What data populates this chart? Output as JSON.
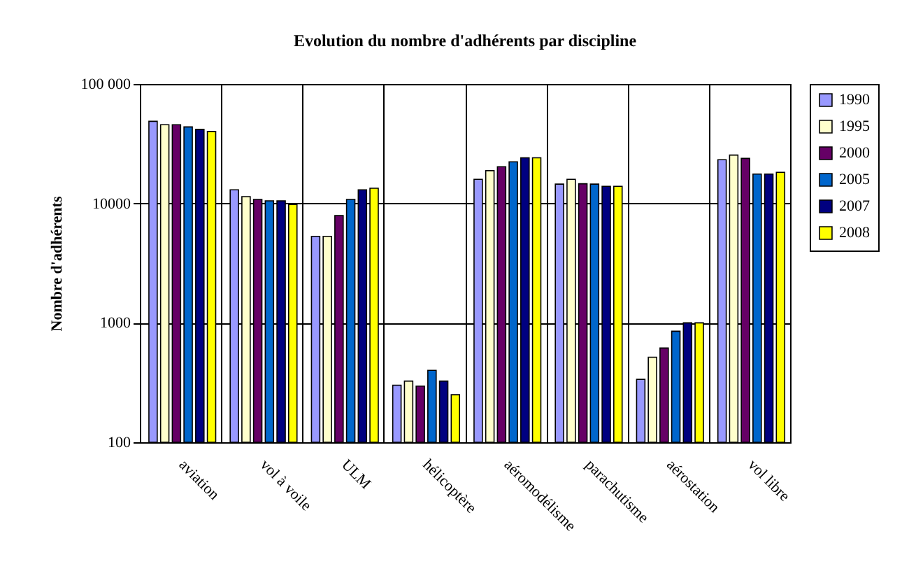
{
  "chart_data": {
    "type": "bar",
    "title": "Evolution du nombre d'adhérents par discipline",
    "ylabel": "Nombre d'adhérents",
    "categories": [
      "aviation",
      "vol à voile",
      "ULM",
      "hélicoptère",
      "aéromodélisme",
      "parachutisme",
      "aérostation",
      "vol libre"
    ],
    "series": [
      {
        "name": "1990",
        "color": "#9999ff",
        "values": [
          48700,
          13000,
          5300,
          300,
          15900,
          14500,
          336,
          23200
        ]
      },
      {
        "name": "1995",
        "color": "#ffffcc",
        "values": [
          45600,
          11400,
          5300,
          325,
          18800,
          15900,
          515,
          25400
        ]
      },
      {
        "name": "2000",
        "color": "#660066",
        "values": [
          45600,
          10800,
          7900,
          295,
          20300,
          14600,
          615,
          23800
        ]
      },
      {
        "name": "2005",
        "color": "#0066cc",
        "values": [
          43700,
          10500,
          10800,
          400,
          22300,
          14500,
          850,
          17600
        ]
      },
      {
        "name": "2007",
        "color": "#000080",
        "values": [
          41700,
          10500,
          13000,
          325,
          24100,
          13900,
          1000,
          17600
        ]
      },
      {
        "name": "2008",
        "color": "#ffff00",
        "values": [
          40000,
          9800,
          13400,
          250,
          24100,
          13900,
          1000,
          18200
        ]
      }
    ],
    "log": true,
    "ylim": [
      100,
      100000
    ],
    "yticks": [
      100,
      1000,
      10000,
      {
        "value": 100000,
        "label": "100 000"
      }
    ],
    "grid": true,
    "legend": "right"
  }
}
